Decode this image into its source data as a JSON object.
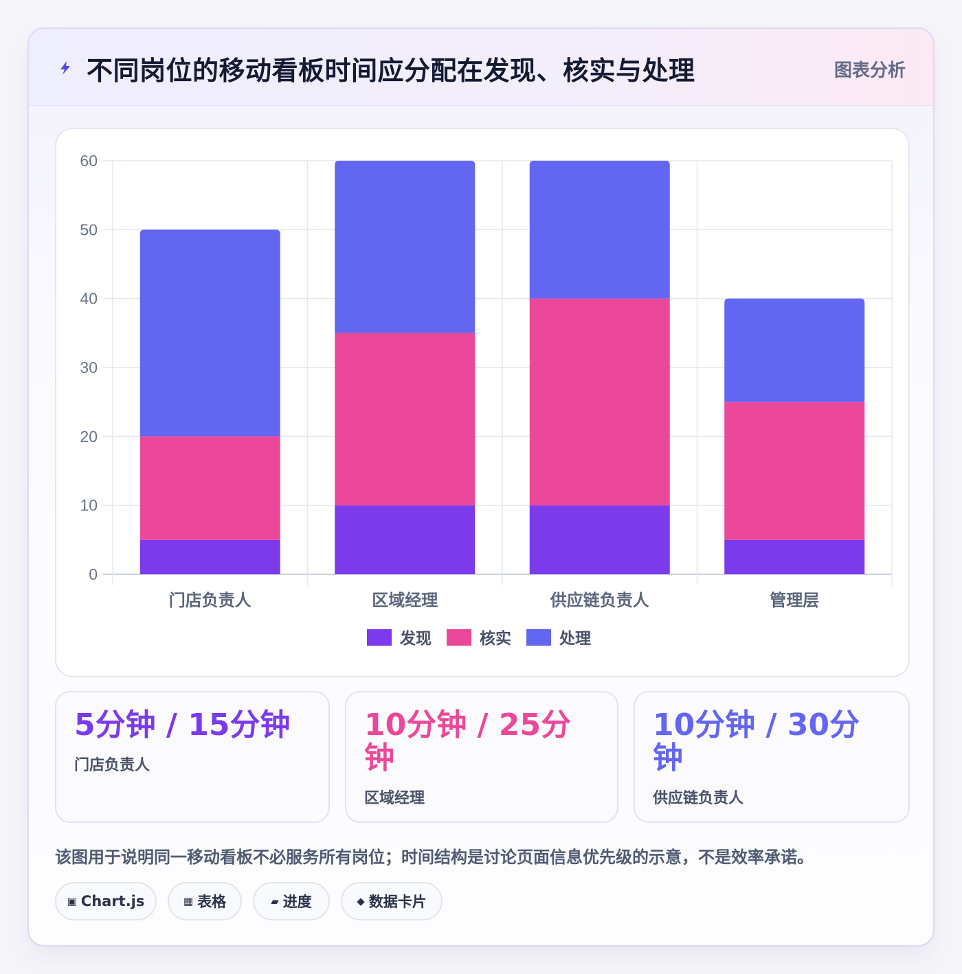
{
  "header": {
    "title": "不同岗位的移动看板时间应分配在发现、核实与处理",
    "tag": "图表分析",
    "icon": "bolt-icon"
  },
  "colors": {
    "discover": "#7c3aed",
    "verify": "#ec4899",
    "handle": "#6366f1"
  },
  "chart_data": {
    "type": "bar",
    "stacked": true,
    "categories": [
      "门店负责人",
      "区域经理",
      "供应链负责人",
      "管理层"
    ],
    "series": [
      {
        "name": "发现",
        "values": [
          5,
          10,
          10,
          5
        ]
      },
      {
        "name": "核实",
        "values": [
          15,
          25,
          30,
          20
        ]
      },
      {
        "name": "处理",
        "values": [
          30,
          25,
          20,
          15
        ]
      }
    ],
    "ylim": [
      0,
      60
    ],
    "yticks": [
      0,
      10,
      20,
      30,
      40,
      50,
      60
    ],
    "grid": true,
    "legend": "bottom"
  },
  "stats": [
    {
      "value": "5分钟 / 15分钟",
      "label": "门店负责人"
    },
    {
      "value": "10分钟 / 25分钟",
      "label": "区域经理"
    },
    {
      "value": "10分钟 / 30分钟",
      "label": "供应链负责人"
    }
  ],
  "caption": "该图用于说明同一移动看板不必服务所有岗位；时间结构是讨论页面信息优先级的示意，不是效率承诺。",
  "chips": [
    {
      "icon": "chart-icon",
      "glyph": "▣",
      "label": "Chart.js"
    },
    {
      "icon": "table-icon",
      "glyph": "▦",
      "label": "表格"
    },
    {
      "icon": "progress-icon",
      "glyph": "▰",
      "label": "进度"
    },
    {
      "icon": "data-card-icon",
      "glyph": "◆",
      "label": "数据卡片"
    }
  ]
}
